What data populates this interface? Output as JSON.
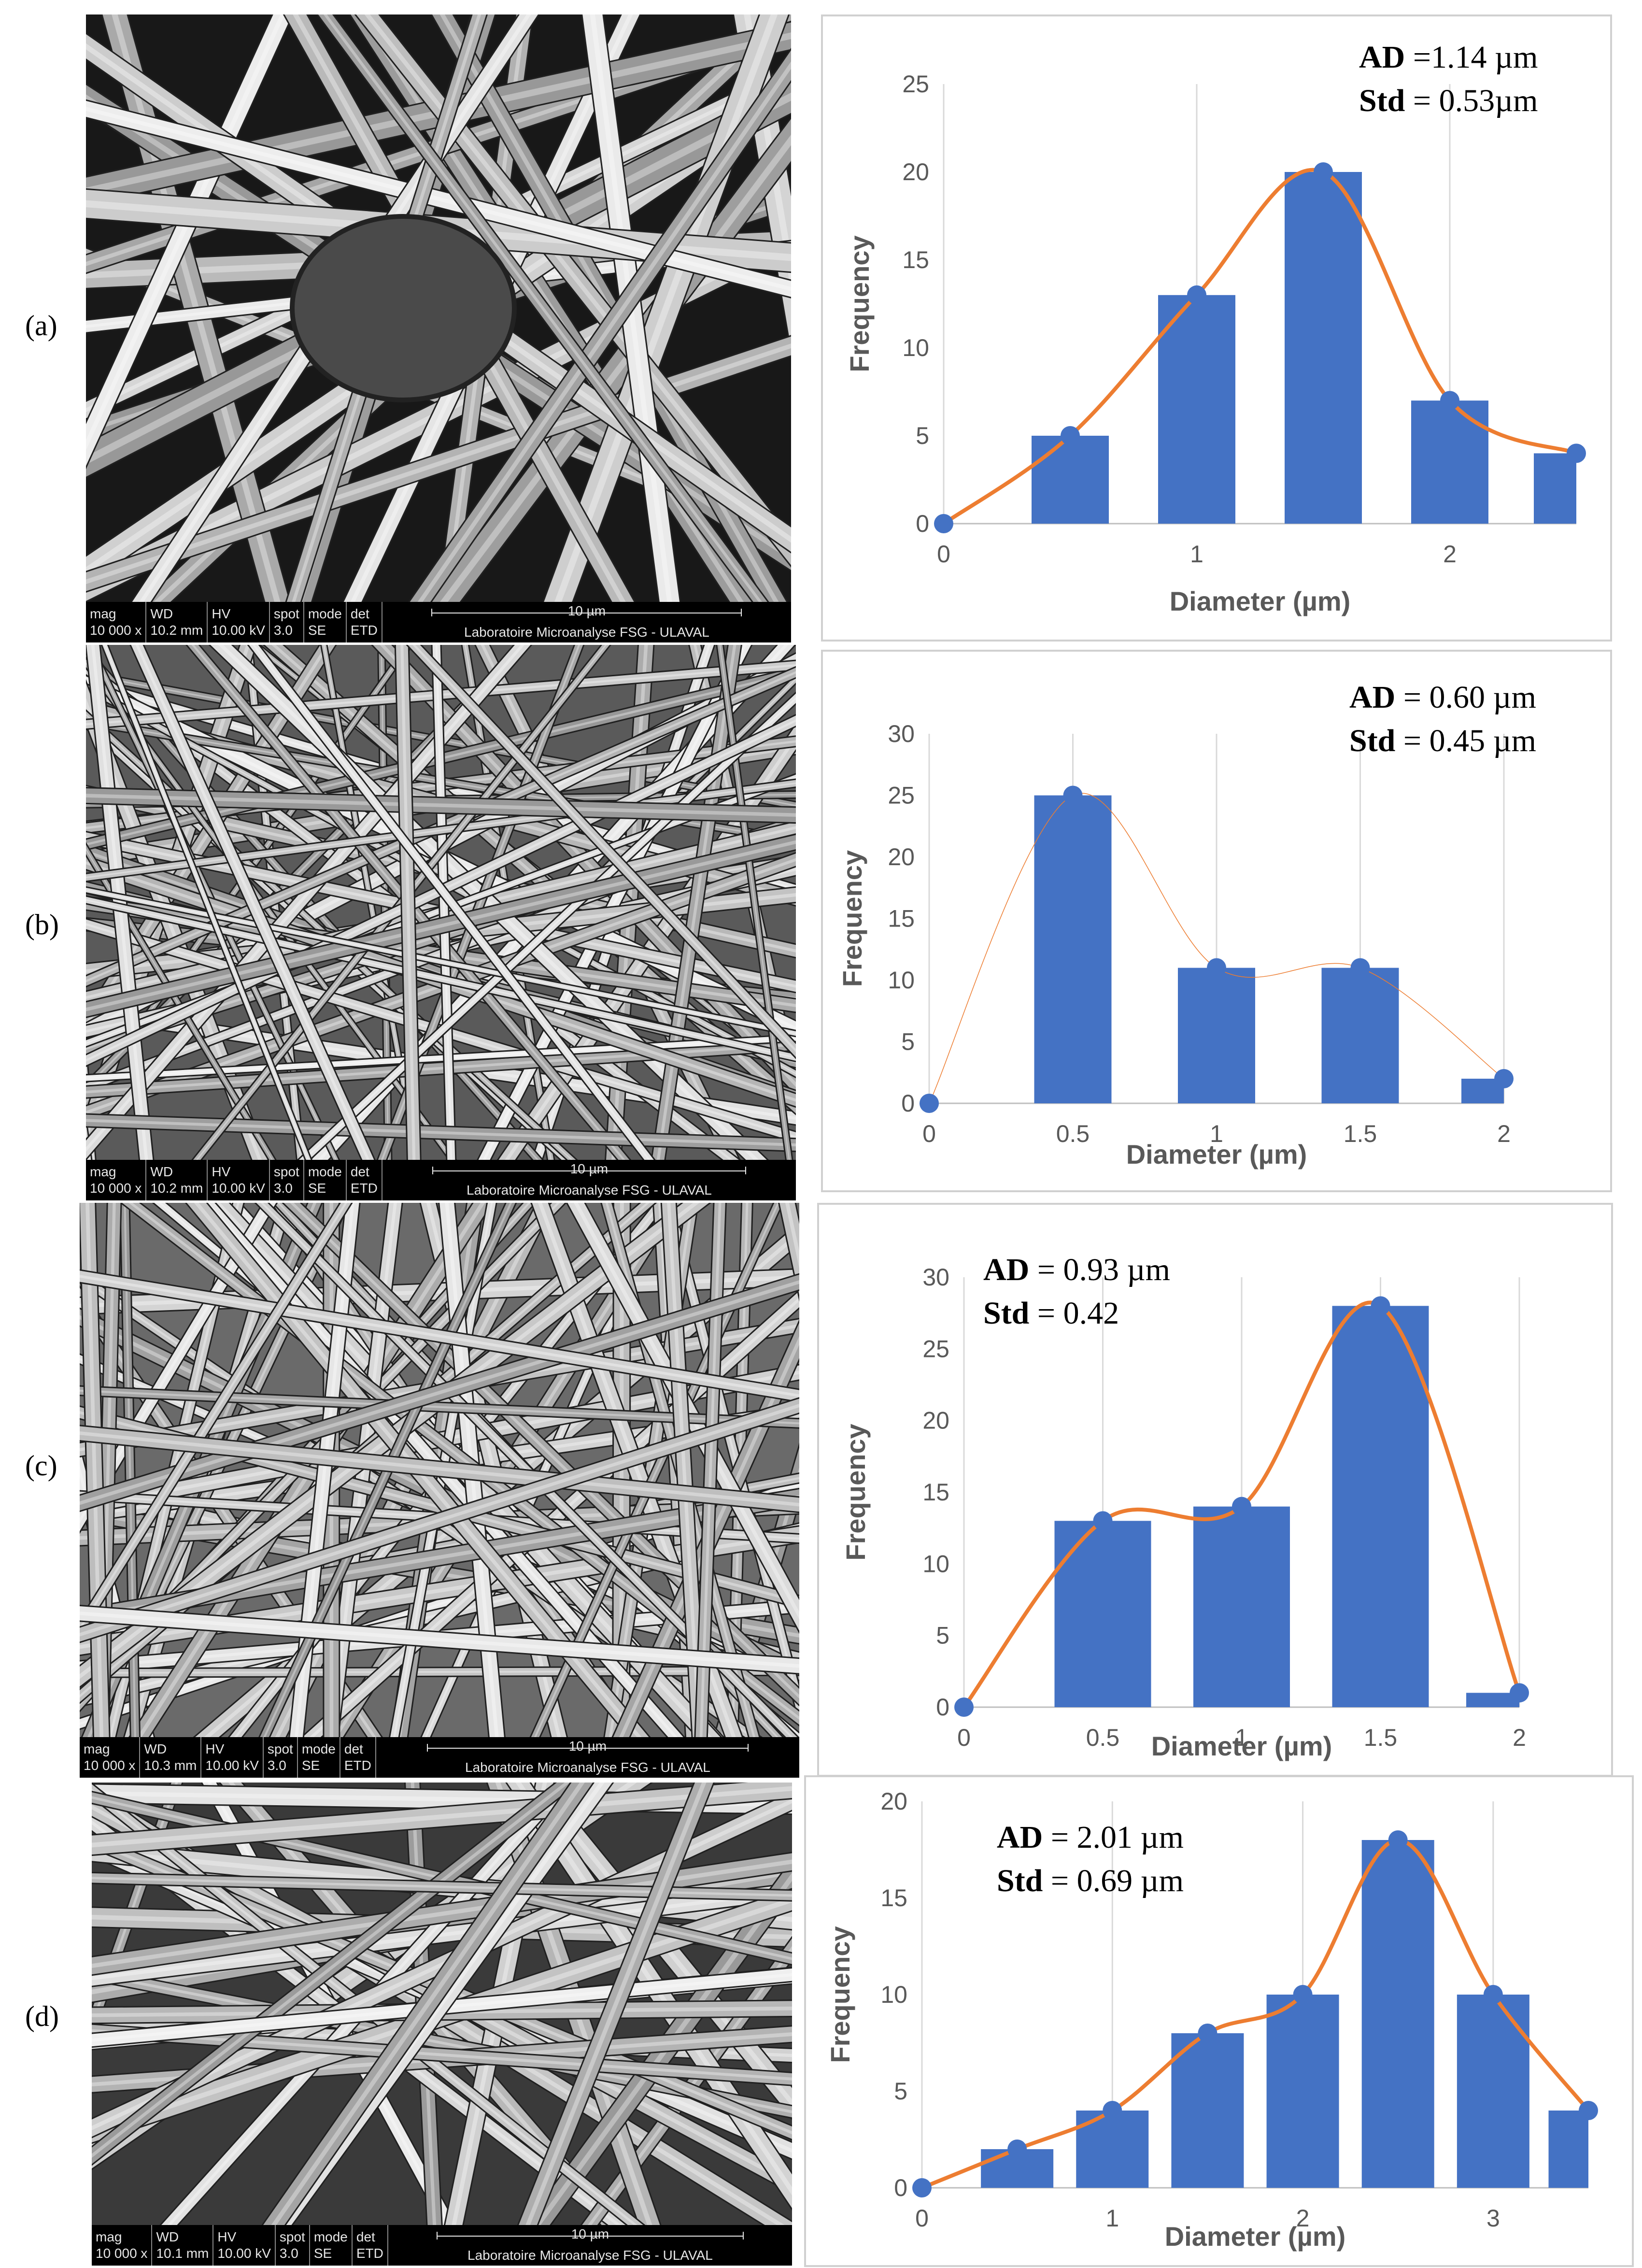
{
  "panels": [
    {
      "label": "(a)",
      "sem": {
        "mag": "10 000 x",
        "wd": "10.2 mm",
        "hv": "10.00 kV",
        "spot": "3.0",
        "mode": "SE",
        "det": "ETD",
        "scale": "10 µm",
        "lab": "Laboratoire Microanalyse FSG - ULAVAL"
      },
      "annotation": {
        "ad_label": "AD",
        "ad_value": " =1.14 µm",
        "std_label": "Std",
        "std_value": " = 0.53µm"
      }
    },
    {
      "label": "(b)",
      "sem": {
        "mag": "10 000 x",
        "wd": "10.2 mm",
        "hv": "10.00 kV",
        "spot": "3.0",
        "mode": "SE",
        "det": "ETD",
        "scale": "10 µm",
        "lab": "Laboratoire Microanalyse FSG - ULAVAL"
      },
      "annotation": {
        "ad_label": "AD",
        "ad_value": " = 0.60 µm",
        "std_label": "Std",
        "std_value": " = 0.45 µm"
      }
    },
    {
      "label": "(c)",
      "sem": {
        "mag": "10 000 x",
        "wd": "10.3 mm",
        "hv": "10.00 kV",
        "spot": "3.0",
        "mode": "SE",
        "det": "ETD",
        "scale": "10 µm",
        "lab": "Laboratoire Microanalyse FSG - ULAVAL"
      },
      "annotation": {
        "ad_label": "AD",
        "ad_value": " = 0.93 µm",
        "std_label": "Std",
        "std_value": " = 0.42"
      }
    },
    {
      "label": "(d)",
      "sem": {
        "mag": "10 000 x",
        "wd": "10.1 mm",
        "hv": "10.00 kV",
        "spot": "3.0",
        "mode": "SE",
        "det": "ETD",
        "scale": "10 µm",
        "lab": "Laboratoire Microanalyse FSG - ULAVAL"
      },
      "annotation": {
        "ad_label": "AD",
        "ad_value": " = 2.01 µm",
        "std_label": "Std",
        "std_value": " = 0.69 µm"
      }
    }
  ],
  "sem_bar_labels": {
    "mag": "mag",
    "wd": "WD",
    "hv": "HV",
    "spot": "spot",
    "mode": "mode",
    "det": "det"
  },
  "colors": {
    "bar": "#4472c4",
    "curve": "#ed7d31",
    "grid": "#d9d9d9",
    "text": "#595959"
  },
  "chart_data": [
    {
      "type": "bar",
      "xlabel": "Diameter (µm)",
      "ylabel": "Frequency",
      "xlim": [
        0,
        2.5
      ],
      "ylim": [
        0,
        25
      ],
      "xticks": [
        0,
        1,
        2
      ],
      "yticks": [
        0,
        5,
        10,
        15,
        20,
        25
      ],
      "bars": {
        "x": [
          0.5,
          1,
          1.5,
          2,
          2.5
        ],
        "values": [
          5,
          13,
          20,
          7,
          4
        ]
      },
      "curve": {
        "x": [
          0,
          0.5,
          1,
          1.5,
          2,
          2.5
        ],
        "values": [
          0,
          5,
          13,
          20,
          7,
          4
        ]
      }
    },
    {
      "type": "bar",
      "xlabel": "Diameter (µm)",
      "ylabel": "Frequency",
      "xlim": [
        0,
        2
      ],
      "ylim": [
        0,
        30
      ],
      "xticks": [
        0,
        0.5,
        1,
        1.5,
        2
      ],
      "yticks": [
        0,
        5,
        10,
        15,
        20,
        25,
        30
      ],
      "bars": {
        "x": [
          0.5,
          1,
          1.5,
          2
        ],
        "values": [
          25,
          11,
          11,
          2
        ]
      },
      "curve": {
        "x": [
          0,
          0.5,
          1,
          1.5,
          2
        ],
        "values": [
          0,
          25,
          11,
          11,
          2
        ]
      }
    },
    {
      "type": "bar",
      "xlabel": "Diameter  (µm)",
      "ylabel": "Frequency",
      "xlim": [
        0,
        2
      ],
      "ylim": [
        0,
        30
      ],
      "xticks": [
        0,
        0.5,
        1,
        1.5,
        2
      ],
      "yticks": [
        0,
        5,
        10,
        15,
        20,
        25,
        30
      ],
      "bars": {
        "x": [
          0.5,
          1,
          1.5,
          2
        ],
        "values": [
          13,
          14,
          28,
          1
        ]
      },
      "curve": {
        "x": [
          0,
          0.5,
          1,
          1.5,
          2
        ],
        "values": [
          0,
          13,
          14,
          28,
          1
        ]
      }
    },
    {
      "type": "bar",
      "xlabel": "Diameter (µm)",
      "ylabel": "Frequency",
      "xlim": [
        0,
        3.5
      ],
      "ylim": [
        0,
        20
      ],
      "xticks": [
        0,
        1,
        2,
        3
      ],
      "yticks": [
        0,
        5,
        10,
        15,
        20
      ],
      "bars": {
        "x": [
          0.5,
          1,
          1.5,
          2,
          2.5,
          3,
          3.5
        ],
        "values": [
          2,
          4,
          8,
          10,
          18,
          10,
          4
        ]
      },
      "curve": {
        "x": [
          0,
          0.5,
          1,
          1.5,
          2,
          2.5,
          3,
          3.5
        ],
        "values": [
          0,
          2,
          4,
          8,
          10,
          18,
          10,
          4
        ]
      }
    }
  ]
}
